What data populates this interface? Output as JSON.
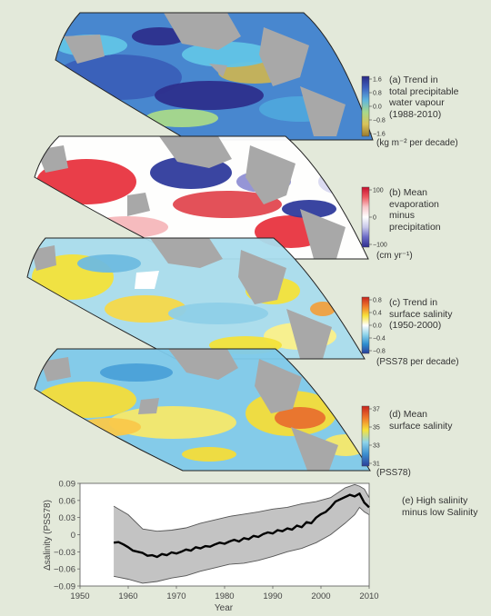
{
  "panels": [
    {
      "id": "a",
      "title_lines": [
        "(a) Trend in",
        "total precipitable",
        "water vapour",
        "(1988-2010)"
      ],
      "unit": "(kg m⁻² per decade)",
      "colorbar_ticks": [
        "1.6",
        "0.8",
        "0.0",
        "−0.8",
        "−1.6"
      ],
      "colorbar_colors": [
        "#2a2a86",
        "#3f63c0",
        "#5fb6de",
        "#a9d98a",
        "#d8c35a",
        "#9a7a2e"
      ]
    },
    {
      "id": "b",
      "title_lines": [
        "(b) Mean",
        "evaporation",
        "minus",
        "precipitation"
      ],
      "unit": "(cm yr⁻¹)",
      "colorbar_ticks": [
        "100",
        "0",
        "−100"
      ],
      "colorbar_colors": [
        "#c8102e",
        "#ee5b62",
        "#f8c9cc",
        "#ffffff",
        "#c8c8ea",
        "#6a6ac6",
        "#2e2e8f"
      ]
    },
    {
      "id": "c",
      "title_lines": [
        "(c) Trend in",
        "surface salinity",
        "(1950-2000)"
      ],
      "unit": "(PSS78 per decade)",
      "colorbar_ticks": [
        "0.8",
        "0.4",
        "0.0",
        "−0.4",
        "−0.8"
      ],
      "colorbar_colors": [
        "#c8241e",
        "#f07a2a",
        "#f7e33a",
        "#ffffff",
        "#8fd4ea",
        "#2f8fd0",
        "#2a3f9a"
      ]
    },
    {
      "id": "d",
      "title_lines": [
        "(d) Mean",
        "surface salinity"
      ],
      "unit": "(PSS78)",
      "colorbar_ticks": [
        "37",
        "35",
        "33",
        "31"
      ],
      "colorbar_colors": [
        "#c8241e",
        "#f07a2a",
        "#f7e33a",
        "#8fd4ea",
        "#3a8fd0",
        "#2a3f9a"
      ]
    }
  ],
  "map_colors": {
    "a": [
      "#3f82cf",
      "#3a5fb8",
      "#62c4e6",
      "#2d2f8c",
      "#a9d98a",
      "#c9b355",
      "#4fa6dc"
    ],
    "b": [
      "#e8343f",
      "#2f3b9c",
      "#f6b7bb",
      "#8f8fd4",
      "#ffffff",
      "#e14850",
      "#d9d9f0"
    ],
    "c": [
      "#f3e13a",
      "#a9dced",
      "#f6d84a",
      "#8ecfe8",
      "#fbf08a",
      "#6ebbe0",
      "#f0a040"
    ],
    "d": [
      "#f3dc3a",
      "#f2a036",
      "#7ec9ea",
      "#f6e86a",
      "#e8702e",
      "#4aa0d8",
      "#f9c84a"
    ]
  },
  "land_color": "#a8a8a8",
  "chart_data": {
    "type": "line",
    "title": "(e) High salinity minus low Salinity",
    "xlabel": "Year",
    "ylabel": "Δsalinity (PSS78)",
    "xlim": [
      1950,
      2010
    ],
    "ylim": [
      -0.09,
      0.09
    ],
    "xticks": [
      1950,
      1960,
      1970,
      1980,
      1990,
      2000,
      2010
    ],
    "yticks": [
      0.09,
      0.06,
      0.03,
      0,
      -0.03,
      -0.06,
      -0.09
    ],
    "ytick_labels": [
      "0.09",
      "0.06",
      "0.03",
      "0",
      "−0.03",
      "−0.06",
      "−0.09"
    ],
    "series": [
      {
        "role": "mean",
        "color": "#000000",
        "x": [
          1957,
          1958,
          1959,
          1960,
          1961,
          1962,
          1963,
          1964,
          1965,
          1966,
          1967,
          1968,
          1969,
          1970,
          1971,
          1972,
          1973,
          1974,
          1975,
          1976,
          1977,
          1978,
          1979,
          1980,
          1981,
          1982,
          1983,
          1984,
          1985,
          1986,
          1987,
          1988,
          1989,
          1990,
          1991,
          1992,
          1993,
          1994,
          1995,
          1996,
          1997,
          1998,
          1999,
          2000,
          2001,
          2002,
          2003,
          2004,
          2005,
          2006,
          2007,
          2008,
          2009,
          2010
        ],
        "y": [
          -0.014,
          -0.013,
          -0.017,
          -0.022,
          -0.028,
          -0.03,
          -0.032,
          -0.037,
          -0.036,
          -0.039,
          -0.034,
          -0.036,
          -0.031,
          -0.033,
          -0.03,
          -0.026,
          -0.028,
          -0.022,
          -0.024,
          -0.02,
          -0.021,
          -0.017,
          -0.014,
          -0.016,
          -0.012,
          -0.009,
          -0.012,
          -0.006,
          -0.008,
          -0.002,
          -0.004,
          0.001,
          0.004,
          0.002,
          0.008,
          0.006,
          0.011,
          0.009,
          0.016,
          0.013,
          0.022,
          0.02,
          0.03,
          0.036,
          0.04,
          0.048,
          0.058,
          0.062,
          0.066,
          0.07,
          0.067,
          0.072,
          0.056,
          0.048
        ]
      },
      {
        "role": "upper-bound",
        "color": "#555555",
        "x": [
          1957,
          1960,
          1963,
          1966,
          1969,
          1972,
          1975,
          1978,
          1981,
          1984,
          1987,
          1990,
          1993,
          1996,
          1999,
          2002,
          2005,
          2007,
          2008,
          2009,
          2010
        ],
        "y": [
          0.05,
          0.035,
          0.01,
          0.006,
          0.008,
          0.012,
          0.02,
          0.026,
          0.032,
          0.036,
          0.04,
          0.045,
          0.048,
          0.054,
          0.058,
          0.065,
          0.082,
          0.088,
          0.085,
          0.08,
          0.065
        ]
      },
      {
        "role": "lower-bound",
        "color": "#555555",
        "x": [
          1957,
          1960,
          1963,
          1966,
          1969,
          1972,
          1975,
          1978,
          1981,
          1984,
          1987,
          1990,
          1993,
          1996,
          1999,
          2002,
          2005,
          2007,
          2008,
          2009,
          2010
        ],
        "y": [
          -0.073,
          -0.078,
          -0.085,
          -0.082,
          -0.076,
          -0.072,
          -0.064,
          -0.058,
          -0.052,
          -0.05,
          -0.045,
          -0.038,
          -0.03,
          -0.024,
          -0.014,
          0.0,
          0.02,
          0.035,
          0.048,
          0.04,
          0.035
        ]
      }
    ],
    "band_color": "#c3c3c3"
  }
}
